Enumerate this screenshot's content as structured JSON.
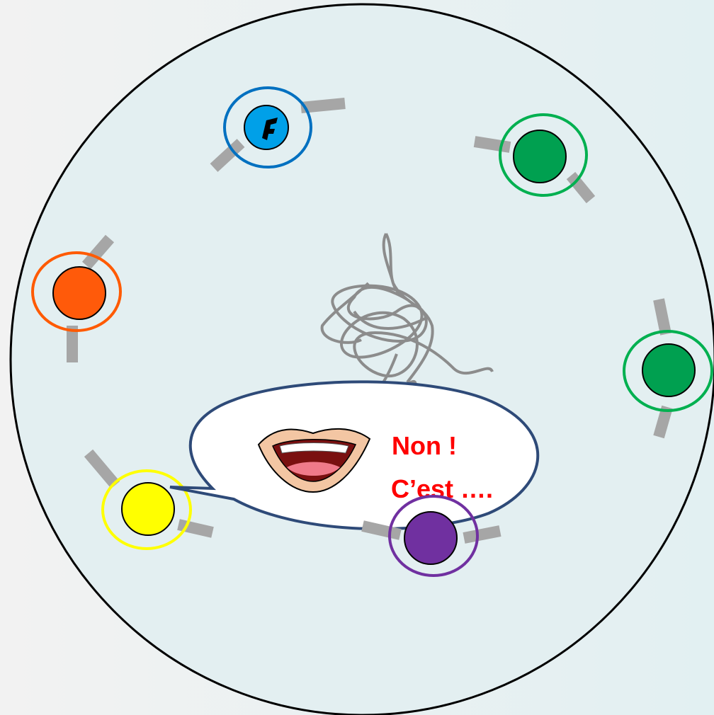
{
  "bubble": {
    "lines": [
      "Non !",
      "C’est …."
    ]
  }
}
